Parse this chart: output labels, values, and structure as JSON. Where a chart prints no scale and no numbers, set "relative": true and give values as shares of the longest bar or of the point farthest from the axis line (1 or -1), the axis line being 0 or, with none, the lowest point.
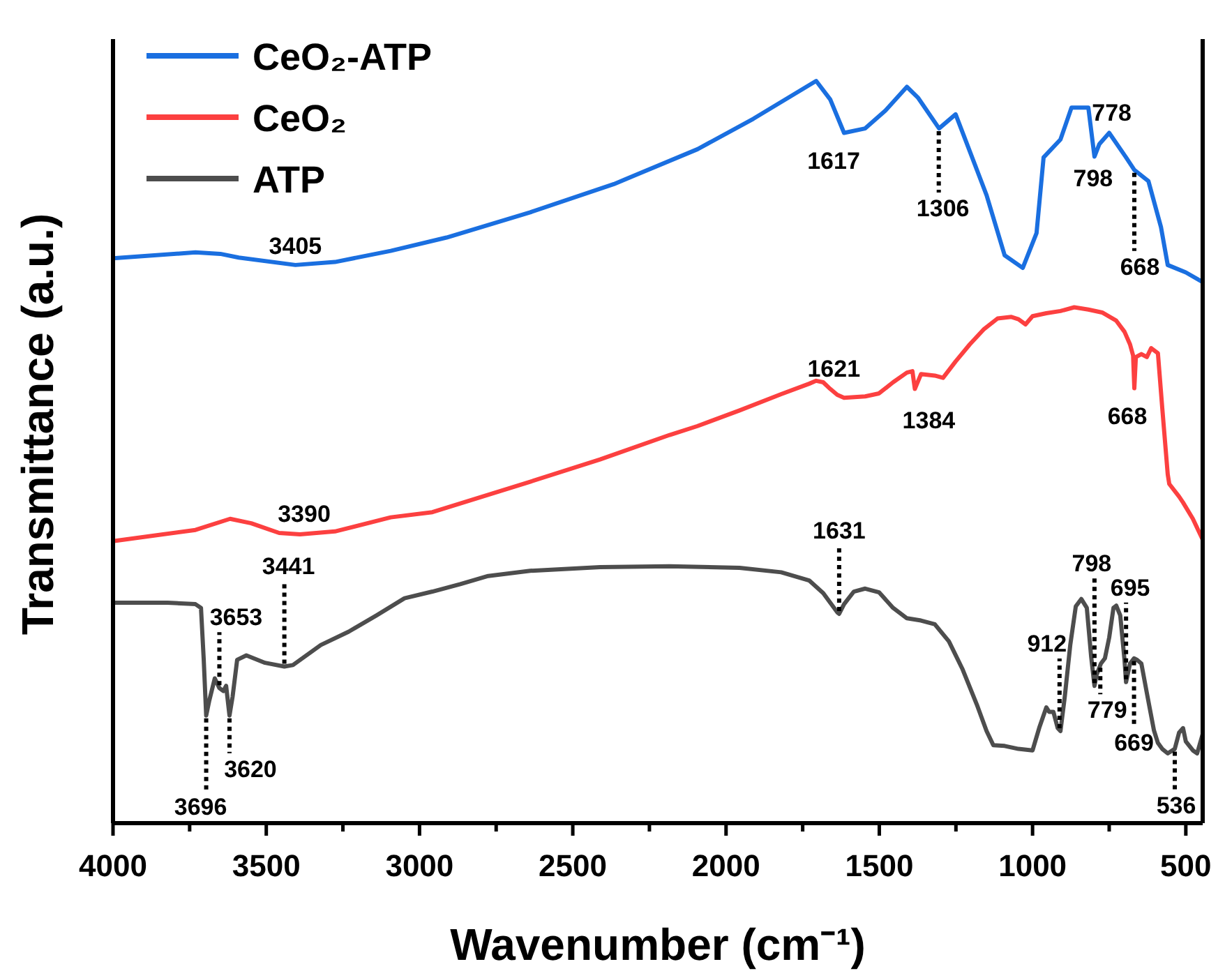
{
  "chart_data": {
    "type": "line",
    "relative": true,
    "xlabel": "Wavenumber (cm⁻¹)",
    "ylabel": "Transmittance (a.u.)",
    "xlim": [
      4000,
      445
    ],
    "xticks": [
      4000,
      {
        "value": 3750,
        "label": null
      },
      3500,
      {
        "value": 3250,
        "label": null
      },
      3000,
      {
        "value": 2750,
        "label": null
      },
      2500,
      {
        "value": 2250,
        "label": null
      },
      2000,
      {
        "value": 1750,
        "label": null
      },
      1500,
      {
        "value": 1250,
        "label": null
      },
      1000,
      {
        "value": 750,
        "label": null
      },
      500
    ],
    "legend": "top left",
    "line_style": "solid",
    "series": [
      {
        "name": "CeO₂-ATP",
        "color": "#1a6fe0",
        "x": [
          4000,
          3731,
          3650,
          3590,
          3405,
          3276,
          3094,
          2912,
          2639,
          2366,
          2093,
          1911,
          1706,
          1660,
          1615,
          1546,
          1480,
          1410,
          1373,
          1305,
          1251,
          1200,
          1150,
          1091,
          1032,
          987,
          964,
          909,
          873,
          818,
          798,
          782,
          750,
          695,
          668,
          622,
          581,
          559,
          500,
          445
        ],
        "values": [
          0.761,
          0.769,
          0.767,
          0.762,
          0.752,
          0.756,
          0.771,
          0.789,
          0.823,
          0.861,
          0.908,
          0.949,
          1,
          0.975,
          0.93,
          0.936,
          0.96,
          0.992,
          0.977,
          0.936,
          0.955,
          0.9,
          0.846,
          0.765,
          0.748,
          0.795,
          0.897,
          0.921,
          0.964,
          0.964,
          0.898,
          0.915,
          0.93,
          0.897,
          0.88,
          0.865,
          0.803,
          0.752,
          0.742,
          0.729
        ]
      },
      {
        "name": "CeO₂",
        "color": "#fc4040",
        "x": [
          4000,
          3731,
          3618,
          3549,
          3458,
          3390,
          3276,
          3094,
          2958,
          2639,
          2411,
          2184,
          2093,
          1956,
          1820,
          1729,
          1706,
          1683,
          1660,
          1637,
          1615,
          1546,
          1501,
          1455,
          1410,
          1392,
          1384,
          1364,
          1319,
          1292,
          1251,
          1205,
          1160,
          1114,
          1069,
          1046,
          1023,
          1000,
          955,
          909,
          864,
          818,
          773,
          727,
          700,
          682,
          672,
          668,
          663,
          645,
          627,
          613,
          591,
          577,
          559,
          554,
          522,
          509,
          477,
          445
        ],
        "values": [
          0.38,
          0.395,
          0.41,
          0.404,
          0.391,
          0.389,
          0.393,
          0.412,
          0.419,
          0.46,
          0.49,
          0.523,
          0.535,
          0.556,
          0.578,
          0.592,
          0.596,
          0.594,
          0.585,
          0.577,
          0.573,
          0.575,
          0.579,
          0.594,
          0.607,
          0.609,
          0.585,
          0.605,
          0.603,
          0.6,
          0.622,
          0.645,
          0.665,
          0.68,
          0.682,
          0.679,
          0.672,
          0.683,
          0.687,
          0.69,
          0.695,
          0.692,
          0.688,
          0.677,
          0.662,
          0.645,
          0.63,
          0.586,
          0.628,
          0.632,
          0.628,
          0.64,
          0.633,
          0.56,
          0.47,
          0.457,
          0.44,
          0.432,
          0.41,
          0.382
        ]
      },
      {
        "name": "ATP",
        "color": "#4d4d4d",
        "x": [
          4000,
          3822,
          3731,
          3713,
          3704,
          3696,
          3686,
          3668,
          3653,
          3640,
          3631,
          3620,
          3610,
          3595,
          3565,
          3504,
          3441,
          3413,
          3322,
          3231,
          3140,
          3049,
          2958,
          2867,
          2776,
          2639,
          2411,
          2184,
          1956,
          1820,
          1729,
          1683,
          1637,
          1631,
          1615,
          1583,
          1546,
          1501,
          1455,
          1410,
          1364,
          1319,
          1273,
          1228,
          1182,
          1150,
          1128,
          1091,
          1046,
          1000,
          977,
          955,
          946,
          932,
          918,
          909,
          895,
          877,
          859,
          841,
          823,
          809,
          798,
          791,
          777,
          764,
          750,
          736,
          727,
          714,
          700,
          695,
          682,
          669,
          659,
          645,
          627,
          604,
          591,
          577,
          559,
          536,
          522,
          509,
          500,
          477,
          463,
          445
        ],
        "values": [
          0.297,
          0.297,
          0.295,
          0.29,
          0.22,
          0.145,
          0.165,
          0.195,
          0.182,
          0.178,
          0.185,
          0.145,
          0.17,
          0.22,
          0.226,
          0.216,
          0.211,
          0.213,
          0.24,
          0.258,
          0.28,
          0.303,
          0.312,
          0.322,
          0.333,
          0.34,
          0.345,
          0.346,
          0.344,
          0.338,
          0.327,
          0.31,
          0.284,
          0.282,
          0.295,
          0.312,
          0.316,
          0.311,
          0.29,
          0.276,
          0.273,
          0.268,
          0.245,
          0.207,
          0.16,
          0.124,
          0.105,
          0.104,
          0.1,
          0.098,
          0.13,
          0.156,
          0.15,
          0.15,
          0.128,
          0.124,
          0.17,
          0.24,
          0.292,
          0.302,
          0.29,
          0.225,
          0.185,
          0.2,
          0.215,
          0.222,
          0.25,
          0.29,
          0.293,
          0.28,
          0.22,
          0.19,
          0.215,
          0.222,
          0.22,
          0.215,
          0.175,
          0.125,
          0.108,
          0.1,
          0.094,
          0.1,
          0.122,
          0.128,
          0.11,
          0.098,
          0.094,
          0.12
        ]
      }
    ],
    "annotations": [
      {
        "text": "3405",
        "x": 3405,
        "y": 0.752
      },
      {
        "text": "1617",
        "x": 1617,
        "y": 0.93
      },
      {
        "text": "1306",
        "x": 1306,
        "y": 0.936
      },
      {
        "text": "778",
        "x": 778,
        "y": 0.92
      },
      {
        "text": "798",
        "x": 798,
        "y": 0.898
      },
      {
        "text": "668",
        "x": 668,
        "y": 0.88
      },
      {
        "text": "3390",
        "x": 3390,
        "y": 0.389
      },
      {
        "text": "1621",
        "x": 1621,
        "y": 0.575
      },
      {
        "text": "1384",
        "x": 1384,
        "y": 0.585
      },
      {
        "text": "668",
        "x": 668,
        "y": 0.586
      },
      {
        "text": "3653",
        "x": 3653,
        "y": 0.182
      },
      {
        "text": "3441",
        "x": 3441,
        "y": 0.211
      },
      {
        "text": "3696",
        "x": 3696,
        "y": 0.145
      },
      {
        "text": "3620",
        "x": 3620,
        "y": 0.145
      },
      {
        "text": "1631",
        "x": 1631,
        "y": 0.282
      },
      {
        "text": "912",
        "x": 912,
        "y": 0.124
      },
      {
        "text": "798",
        "x": 798,
        "y": 0.185
      },
      {
        "text": "695",
        "x": 695,
        "y": 0.19
      },
      {
        "text": "779",
        "x": 779,
        "y": 0.213
      },
      {
        "text": "669",
        "x": 669,
        "y": 0.222
      },
      {
        "text": "536",
        "x": 536,
        "y": 0.1
      }
    ]
  }
}
